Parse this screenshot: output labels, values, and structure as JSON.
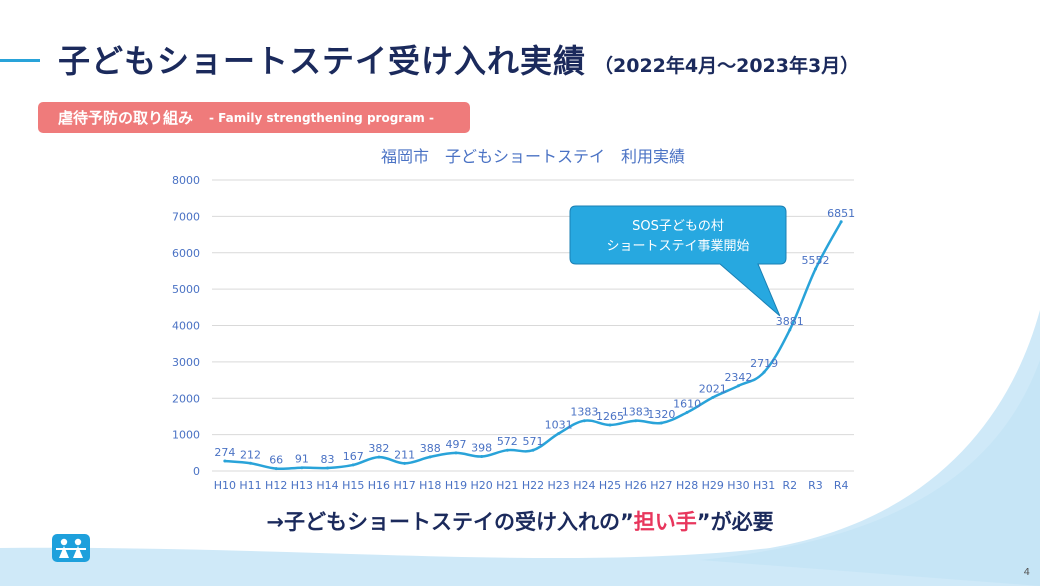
{
  "title": {
    "main": "子どもショートステイ受け入れ実績",
    "period": "（2022年4月～2023年3月）"
  },
  "tag": {
    "label": "虐待予防の取り組み",
    "sub": "- Family strengthening program -"
  },
  "chart_data": {
    "type": "line",
    "title": "福岡市　子どもショートステイ　利用実績",
    "categories": [
      "H10",
      "H11",
      "H12",
      "H13",
      "H14",
      "H15",
      "H16",
      "H17",
      "H18",
      "H19",
      "H20",
      "H21",
      "H22",
      "H23",
      "H24",
      "H25",
      "H26",
      "H27",
      "H28",
      "H29",
      "H30",
      "H31",
      "R2",
      "R3",
      "R4"
    ],
    "values": [
      274,
      212,
      66,
      91,
      83,
      167,
      382,
      211,
      388,
      497,
      398,
      572,
      571,
      1031,
      1383,
      1265,
      1383,
      1320,
      1610,
      2021,
      2342,
      2719,
      3881,
      5552,
      6851
    ],
    "ylim": [
      0,
      8000
    ],
    "yticks": [
      0,
      1000,
      2000,
      3000,
      4000,
      5000,
      6000,
      7000,
      8000
    ],
    "grid": true,
    "line_color": "#29a3d9",
    "callout": {
      "line1": "SOS子どもの村",
      "line2": "ショートステイ事業開始",
      "points_to": "R2"
    }
  },
  "conclusion": {
    "before": "→子どもショートステイの受け入れの”",
    "highlight": "担い手",
    "after": "”が必要"
  },
  "logo": {
    "icon": "sos-childrens-villages-logo-icon"
  },
  "page_number": "4",
  "colors": {
    "title": "#1b2a5c",
    "accent": "#29a3d9",
    "tag_bg": "#ef7b7b",
    "highlight": "#e8365d",
    "wave": "#cde9f8"
  }
}
